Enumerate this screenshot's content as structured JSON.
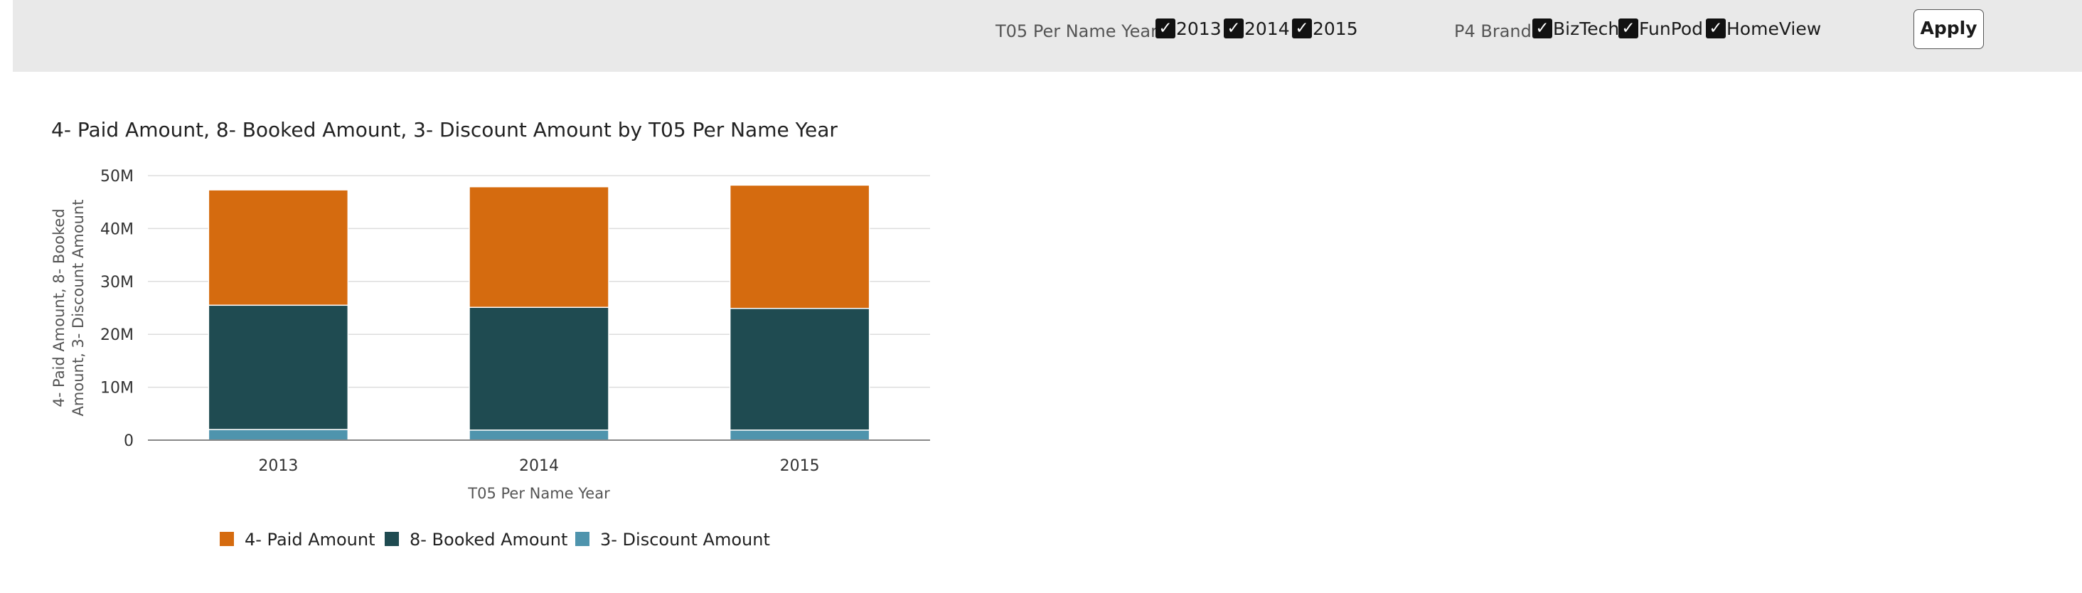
{
  "filters": {
    "year_filter": {
      "label": "T05 Per Name Year",
      "options": [
        {
          "label": "2013",
          "checked": true
        },
        {
          "label": "2014",
          "checked": true
        },
        {
          "label": "2015",
          "checked": true
        }
      ]
    },
    "brand_filter": {
      "label": "P4 Brand",
      "options": [
        {
          "label": "BizTech",
          "checked": true
        },
        {
          "label": "FunPod",
          "checked": true
        },
        {
          "label": "HomeView",
          "checked": true
        }
      ]
    },
    "apply_label": "Apply",
    "check_glyph": "✓"
  },
  "chart_data": {
    "type": "bar",
    "stacked": true,
    "title": "4- Paid Amount, 8- Booked Amount, 3- Discount Amount by T05 Per Name Year",
    "xlabel": "T05 Per Name Year",
    "ylabel_lines": [
      "4- Paid Amount, 8- Booked",
      "Amount, 3- Discount Amount"
    ],
    "categories": [
      "2013",
      "2014",
      "2015"
    ],
    "ylim": [
      0,
      50000000
    ],
    "yticks": [
      0,
      10000000,
      20000000,
      30000000,
      40000000,
      50000000
    ],
    "ytick_labels": [
      "0",
      "10M",
      "20M",
      "30M",
      "40M",
      "50M"
    ],
    "grid": true,
    "legend_position": "bottom",
    "series": [
      {
        "name": "3- Discount Amount",
        "color": "#4f94ad",
        "values": [
          2000000,
          1900000,
          1900000
        ]
      },
      {
        "name": "8- Booked Amount",
        "color": "#1f4b51",
        "values": [
          23500000,
          23200000,
          23000000
        ]
      },
      {
        "name": "4- Paid Amount",
        "color": "#d56b0f",
        "values": [
          21800000,
          22800000,
          23300000
        ]
      }
    ],
    "legend_order": [
      "4- Paid Amount",
      "8- Booked Amount",
      "3- Discount Amount"
    ]
  }
}
